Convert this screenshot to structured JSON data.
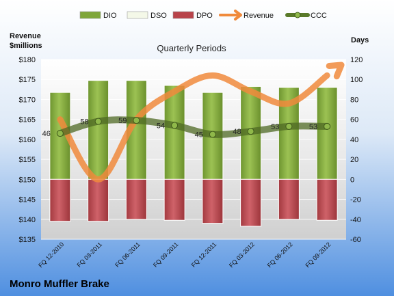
{
  "chart_data": {
    "type": "bar",
    "title": "Quarterly Periods",
    "company": "Monro Muffler Brake",
    "left_axis_title": [
      "Revenue",
      "$millions"
    ],
    "right_axis_title": "Days",
    "categories": [
      "FQ 12-2010",
      "FQ 03-2011",
      "FQ 06-2011",
      "FQ 09-2011",
      "FQ 12-2011",
      "FQ 03-2012",
      "FQ 06-2012",
      "FQ 09-2012"
    ],
    "left_ticks": [
      "$180",
      "$175",
      "$170",
      "$165",
      "$160",
      "$155",
      "$150",
      "$145",
      "$140",
      "$135"
    ],
    "right_ticks": [
      "120",
      "100",
      "80",
      "60",
      "40",
      "20",
      "0",
      "-20",
      "-40",
      "-60"
    ],
    "y_left_range": [
      135,
      180
    ],
    "y_right_range": [
      -60,
      120
    ],
    "legend": [
      {
        "name": "DIO",
        "kind": "bar",
        "color": "#7fa63a"
      },
      {
        "name": "DSO",
        "kind": "bar",
        "color": "#f4f8e8"
      },
      {
        "name": "DPO",
        "kind": "bar",
        "color": "#b8434a"
      },
      {
        "name": "Revenue",
        "kind": "arrow",
        "color": "#f08a3c"
      },
      {
        "name": "CCC",
        "kind": "line",
        "color": "#5a7a2a"
      }
    ],
    "series": [
      {
        "name": "DIO",
        "axis": "right",
        "values": [
          87,
          99,
          99,
          94,
          87,
          93,
          92,
          92
        ]
      },
      {
        "name": "DSO",
        "axis": "right",
        "values": [
          0,
          0,
          0,
          0,
          0,
          0,
          0,
          0
        ]
      },
      {
        "name": "DPO",
        "axis": "right",
        "values": [
          -42,
          -42,
          -40,
          -41,
          -44,
          -47,
          -40,
          -41
        ]
      },
      {
        "name": "Revenue",
        "axis": "left",
        "values": [
          165,
          150,
          165,
          172,
          176,
          172,
          169,
          176
        ]
      },
      {
        "name": "CCC",
        "axis": "right",
        "values": [
          46,
          58,
          59,
          54,
          45,
          48,
          53,
          53
        ]
      }
    ],
    "ccc_labels": [
      "46",
      "58",
      "59",
      "54",
      "45",
      "48",
      "53",
      "53"
    ]
  }
}
